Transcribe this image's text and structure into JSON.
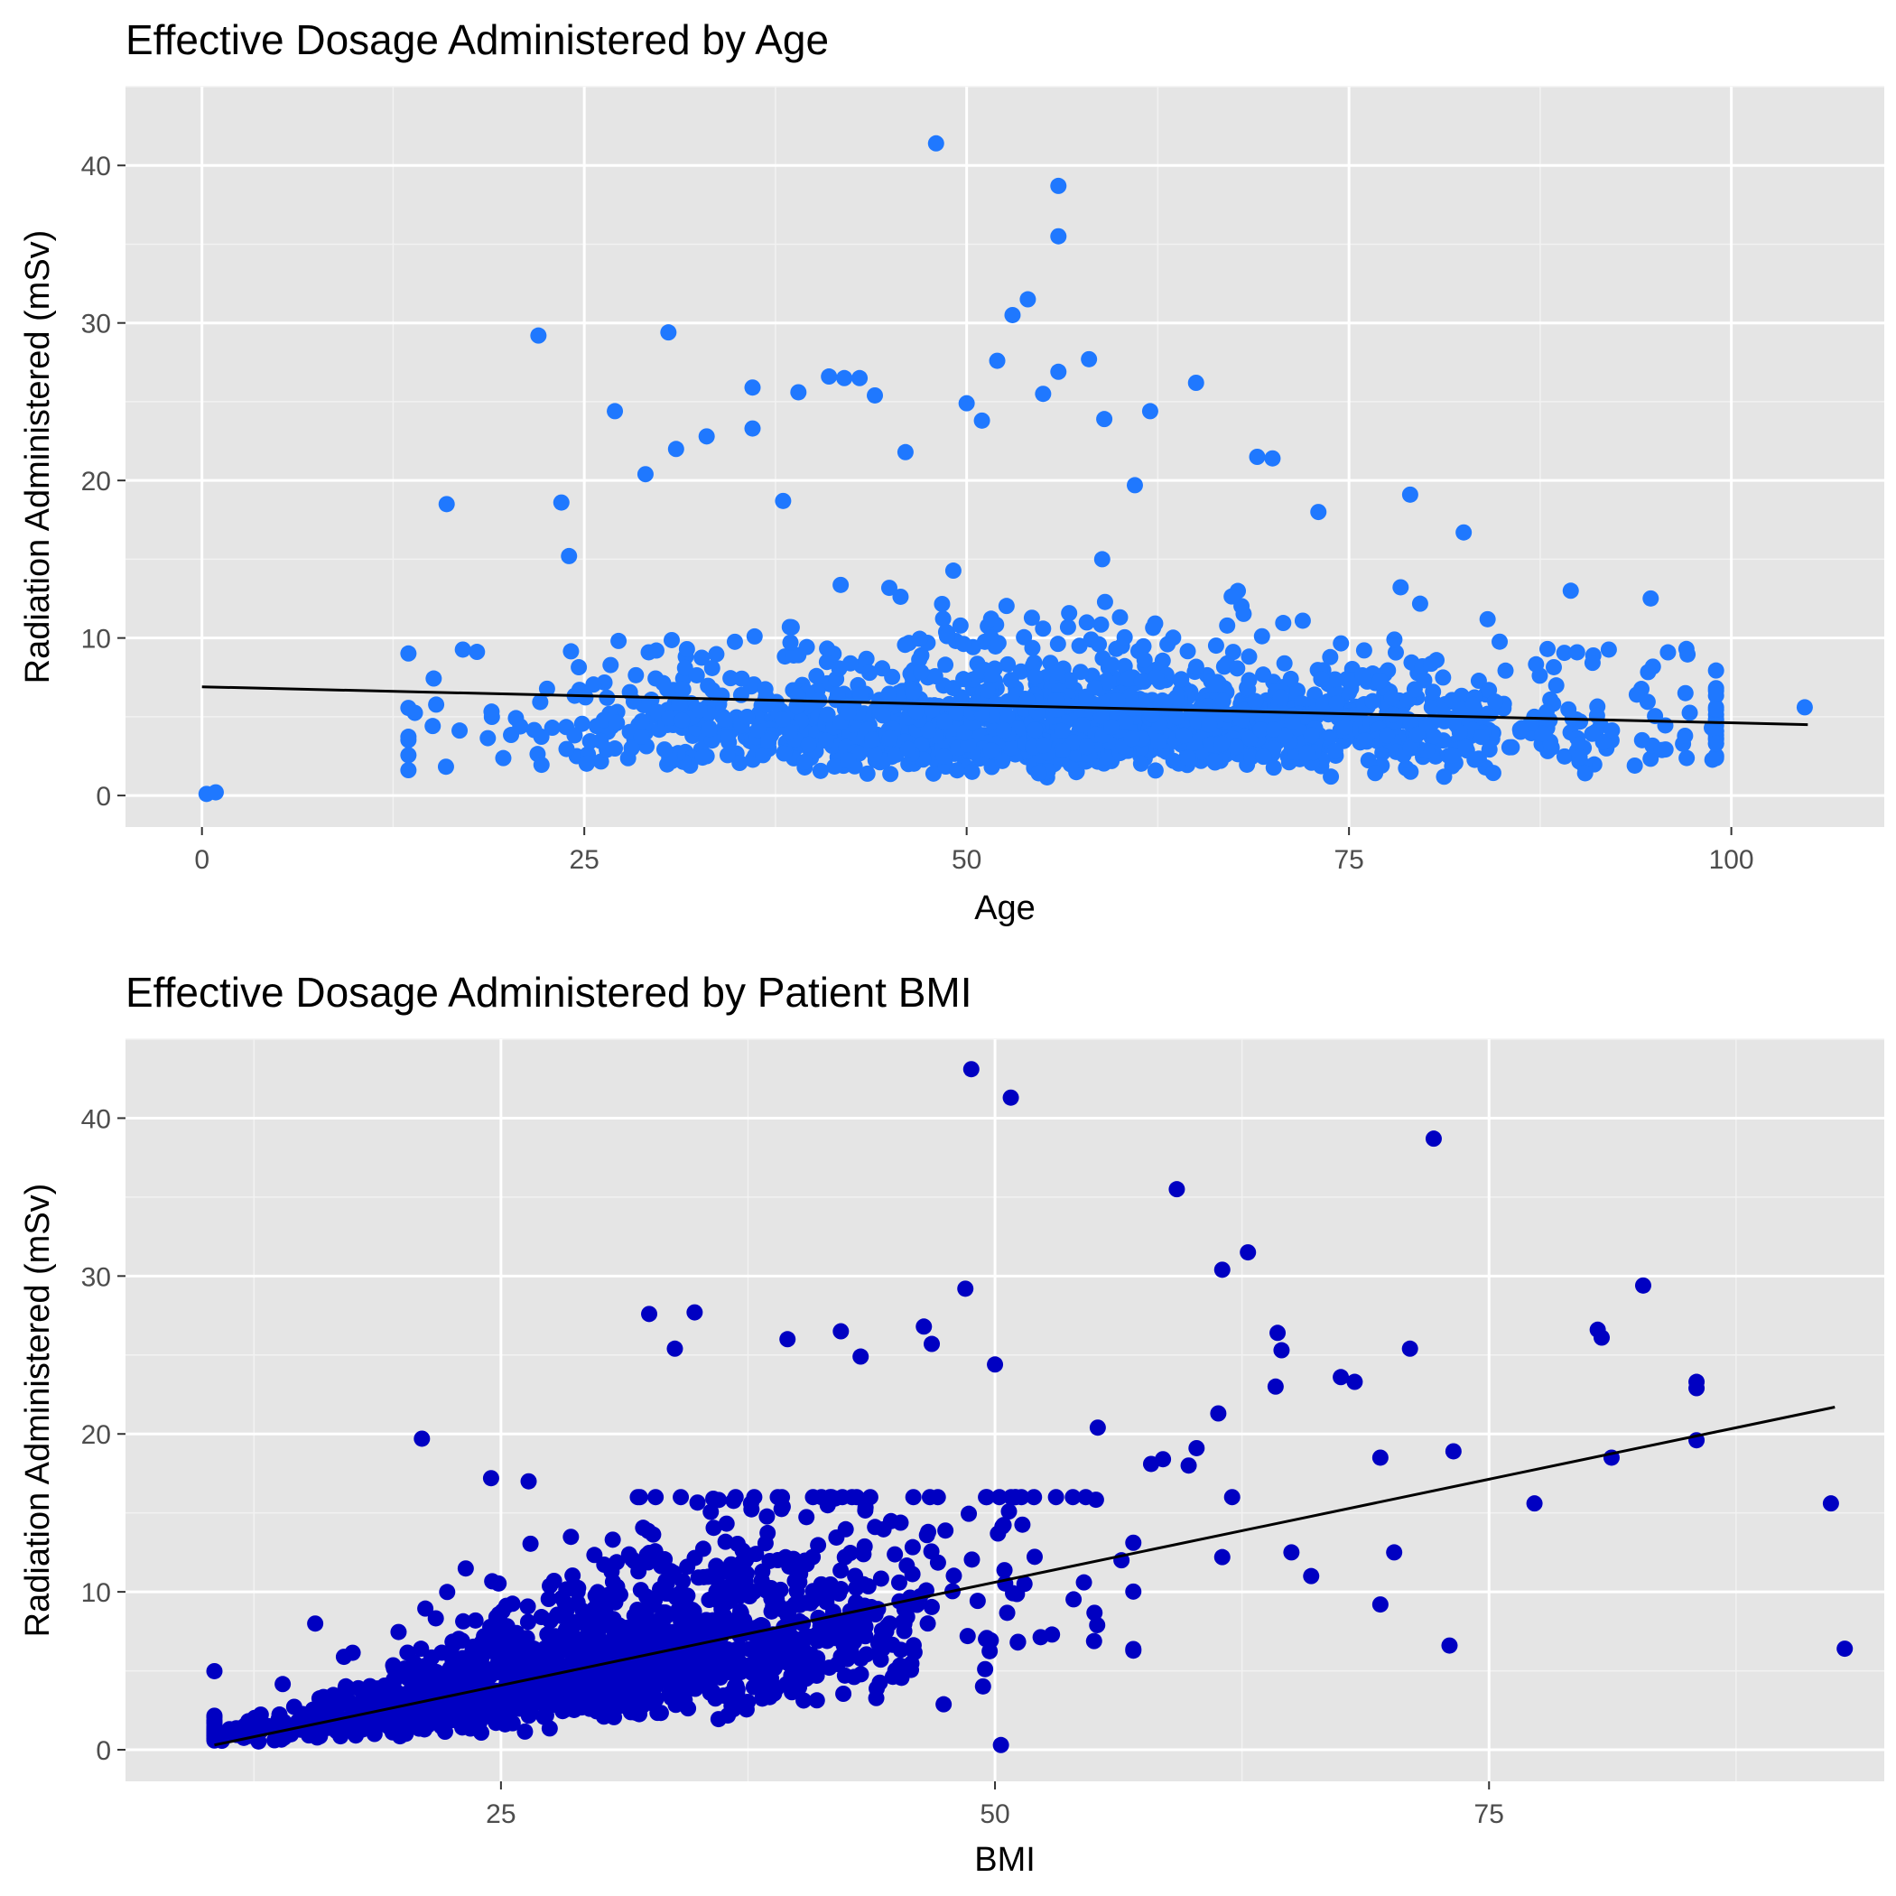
{
  "chart_data": [
    {
      "type": "scatter",
      "title": "Effective Dosage Administered by Age",
      "xlabel": "Age",
      "ylabel": "Radiation Administered (mSv)",
      "xlim": [
        -5,
        110
      ],
      "ylim": [
        -2,
        45
      ],
      "x_ticks": [
        0,
        25,
        50,
        75,
        100
      ],
      "y_ticks": [
        0,
        10,
        20,
        30,
        40
      ],
      "grid": true,
      "legend": "none",
      "point_color": "#1f78ff",
      "trend_line": {
        "x": [
          0,
          105
        ],
        "y": [
          6.9,
          4.5
        ],
        "color": "#000000"
      },
      "outliers": {
        "x": [
          0.3,
          0.9,
          16,
          22,
          23.5,
          30.5,
          36,
          36,
          41,
          42,
          43,
          44,
          48,
          50,
          51,
          53,
          54,
          56,
          56,
          56,
          58,
          62,
          65,
          69,
          79,
          82.5,
          89.5,
          97,
          104.8,
          33,
          24,
          31,
          38,
          46,
          52,
          59,
          61,
          70,
          73,
          29,
          27,
          39,
          55
        ],
        "y": [
          0.1,
          0.2,
          18.5,
          29.2,
          18.6,
          29.4,
          25.9,
          23.3,
          26.6,
          26.5,
          26.5,
          25.4,
          41.4,
          24.9,
          23.8,
          30.5,
          31.5,
          38.7,
          35.5,
          26.9,
          27.7,
          24.4,
          26.2,
          21.5,
          19.1,
          16.7,
          13,
          6.5,
          5.6,
          22.8,
          15.2,
          22,
          18.7,
          21.8,
          27.6,
          23.9,
          19.7,
          21.4,
          18,
          20.4,
          24.4,
          25.6,
          25.5
        ]
      },
      "cloud": {
        "n": 1600,
        "x_range": [
          13.5,
          99
        ],
        "center_x": 58,
        "spread_x": 18,
        "center_y": 4.5,
        "max_y": 15,
        "seed": 7
      }
    },
    {
      "type": "scatter",
      "title": "Effective Dosage Administered by Patient BMI",
      "xlabel": "BMI",
      "ylabel": "Radiation Administered (mSv)",
      "xlim": [
        6,
        95
      ],
      "ylim": [
        -2,
        45
      ],
      "x_ticks": [
        25,
        50,
        75
      ],
      "y_ticks": [
        0,
        10,
        20,
        30,
        40
      ],
      "grid": true,
      "legend": "none",
      "point_color": "#0000c2",
      "trend_line": {
        "x": [
          10.5,
          92.5
        ],
        "y": [
          0.3,
          21.7
        ],
        "color": "#000000"
      },
      "outliers": {
        "x": [
          48.8,
          50.8,
          72.2,
          59.2,
          62.8,
          61.5,
          82.8,
          80.5,
          80.7,
          85.5,
          85.5,
          92.3,
          93,
          71,
          67.5,
          68.2,
          64.5,
          64.2,
          73.2,
          69.5,
          77.3,
          73,
          69.5,
          70.2,
          65,
          66,
          81.2,
          85.5,
          61.3,
          60.2,
          58.5,
          57.9,
          59.8,
          56.4,
          54.5,
          55.2,
          42.2,
          43.2,
          46.4,
          46.8,
          21,
          24.5,
          26.4,
          32.5,
          33.8,
          34.8,
          39.5,
          50,
          48.5,
          50.3,
          61.5,
          64.3,
          62
        ],
        "y": [
          43.1,
          41.3,
          38.7,
          35.5,
          31.5,
          30.4,
          29.4,
          26.6,
          26.1,
          23.3,
          22.9,
          15.6,
          6.4,
          25.4,
          23.6,
          23.3,
          25.3,
          23,
          18.9,
          18.5,
          15.6,
          6.6,
          9.2,
          12.5,
          12.5,
          11,
          18.5,
          19.6,
          21.3,
          19.1,
          18.4,
          18.1,
          18,
          12,
          10.6,
          20.4,
          26.5,
          24.9,
          26.8,
          25.7,
          19.7,
          17.2,
          17,
          27.6,
          25.4,
          27.7,
          26,
          24.4,
          29.2,
          0.3,
          12.2,
          26.4,
          16
        ]
      },
      "cloud": {
        "n": 1600,
        "x_range": [
          10.5,
          57
        ],
        "center_x": 30,
        "spread_x": 9,
        "slope": 0.26,
        "intercept": -2.4,
        "max_y": 16,
        "seed": 11
      }
    }
  ]
}
